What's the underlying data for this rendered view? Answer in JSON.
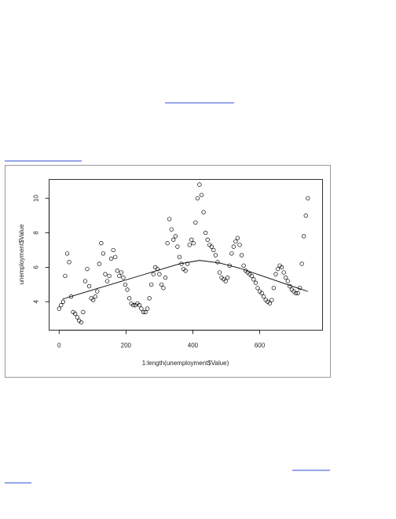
{
  "chart_data": {
    "type": "scatter",
    "xlabel": "1:length(unemployment$Value)",
    "ylabel": "unemployment$Value",
    "xlim": [
      -30,
      788
    ],
    "ylim": [
      2.35,
      11.1
    ],
    "xticks": [
      0,
      200,
      400,
      600
    ],
    "yticks": [
      4,
      6,
      8,
      10
    ],
    "series": [
      {
        "type": "scatter",
        "color": "#000000",
        "x": [
          0,
          6,
          12,
          18,
          24,
          30,
          36,
          42,
          48,
          54,
          60,
          66,
          72,
          78,
          84,
          90,
          96,
          102,
          108,
          114,
          120,
          126,
          132,
          138,
          144,
          150,
          156,
          162,
          168,
          174,
          180,
          186,
          192,
          198,
          204,
          210,
          216,
          222,
          228,
          234,
          240,
          246,
          252,
          258,
          264,
          270,
          276,
          282,
          288,
          294,
          300,
          306,
          312,
          318,
          324,
          330,
          336,
          342,
          348,
          354,
          360,
          366,
          372,
          378,
          384,
          390,
          396,
          402,
          408,
          414,
          420,
          426,
          432,
          438,
          444,
          450,
          456,
          462,
          468,
          474,
          480,
          486,
          492,
          498,
          504,
          510,
          516,
          522,
          528,
          534,
          540,
          546,
          552,
          558,
          564,
          570,
          576,
          582,
          588,
          594,
          600,
          606,
          612,
          618,
          624,
          630,
          636,
          642,
          648,
          654,
          660,
          666,
          672,
          678,
          684,
          690,
          696,
          702,
          708,
          714,
          720,
          726,
          732,
          738,
          744
        ],
        "values": [
          3.6,
          3.8,
          4.0,
          5.5,
          6.8,
          6.3,
          4.3,
          3.4,
          3.3,
          3.1,
          2.9,
          2.8,
          3.4,
          5.2,
          5.9,
          4.9,
          4.2,
          4.1,
          4.3,
          4.6,
          6.2,
          7.4,
          6.8,
          5.6,
          5.2,
          5.5,
          6.5,
          7.0,
          6.6,
          5.8,
          5.5,
          5.7,
          5.4,
          5.0,
          4.7,
          4.2,
          3.9,
          3.8,
          3.8,
          3.9,
          3.8,
          3.6,
          3.4,
          3.4,
          3.6,
          4.2,
          5.0,
          5.6,
          6.0,
          5.9,
          5.6,
          5.0,
          4.8,
          5.4,
          7.4,
          8.8,
          8.2,
          7.6,
          7.8,
          7.2,
          6.6,
          6.2,
          5.9,
          5.8,
          6.2,
          7.3,
          7.6,
          7.4,
          8.6,
          10.0,
          10.8,
          10.2,
          9.2,
          8.0,
          7.6,
          7.3,
          7.2,
          7.0,
          6.7,
          6.3,
          5.7,
          5.4,
          5.3,
          5.2,
          5.4,
          6.1,
          6.8,
          7.2,
          7.5,
          7.7,
          7.3,
          6.7,
          6.1,
          5.8,
          5.7,
          5.6,
          5.5,
          5.3,
          5.1,
          4.8,
          4.6,
          4.5,
          4.3,
          4.1,
          4.0,
          3.9,
          4.1,
          4.8,
          5.6,
          5.9,
          6.1,
          6.0,
          5.7,
          5.4,
          5.2,
          4.9,
          4.7,
          4.6,
          4.5,
          4.5,
          4.8,
          6.2,
          7.8,
          9.0,
          10.0
        ]
      },
      {
        "type": "line",
        "color": "#000000",
        "x": [
          10,
          60,
          120,
          180,
          240,
          300,
          360,
          420,
          480,
          540,
          600,
          660,
          720,
          744
        ],
        "values": [
          4.15,
          4.45,
          4.8,
          5.15,
          5.5,
          5.85,
          6.2,
          6.4,
          6.25,
          5.95,
          5.55,
          5.15,
          4.75,
          4.6
        ]
      }
    ]
  }
}
